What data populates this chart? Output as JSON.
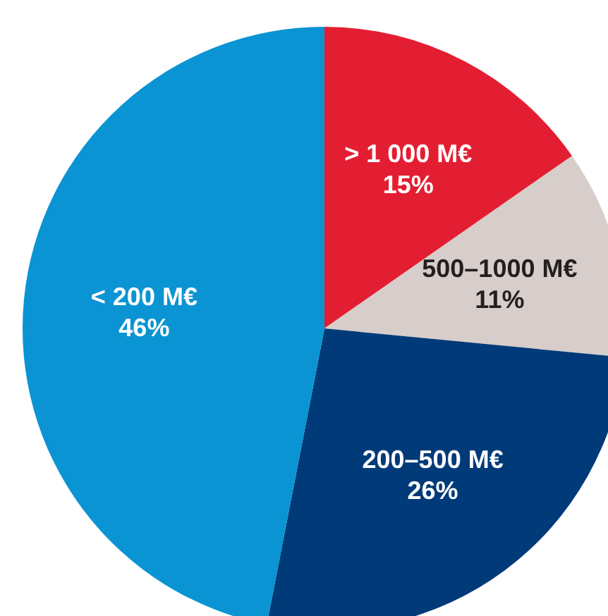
{
  "chart_data": {
    "type": "pie",
    "categories": [
      "> 1 000 M€",
      "500–1000 M€",
      "200–500 M€",
      "< 200 M€"
    ],
    "values": [
      15,
      11,
      26,
      46
    ],
    "value_labels": [
      "15%",
      "11%",
      "26%",
      "46%"
    ],
    "colors": [
      "#e41e32",
      "#d7cdca",
      "#003a78",
      "#0a94d3"
    ]
  }
}
